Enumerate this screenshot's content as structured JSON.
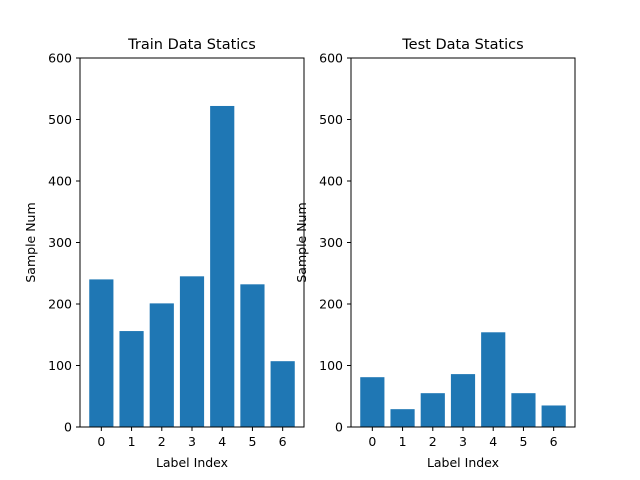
{
  "chart_data": [
    {
      "type": "bar",
      "title": "Train Data Statics",
      "xlabel": "Label Index",
      "ylabel": "Sample Num",
      "categories": [
        "0",
        "1",
        "2",
        "3",
        "4",
        "5",
        "6"
      ],
      "values": [
        240,
        156,
        201,
        245,
        522,
        232,
        107
      ],
      "ylim": [
        0,
        600
      ],
      "yticks": [
        0,
        100,
        200,
        300,
        400,
        500,
        600
      ],
      "bar_color": "#1f77b4",
      "grid": false,
      "legend": false
    },
    {
      "type": "bar",
      "title": "Test Data Statics",
      "xlabel": "Label Index",
      "ylabel": "Sample Num",
      "categories": [
        "0",
        "1",
        "2",
        "3",
        "4",
        "5",
        "6"
      ],
      "values": [
        81,
        29,
        55,
        86,
        154,
        55,
        35
      ],
      "ylim": [
        0,
        600
      ],
      "yticks": [
        0,
        100,
        200,
        300,
        400,
        500,
        600
      ],
      "bar_color": "#1f77b4",
      "grid": false,
      "legend": false
    }
  ]
}
